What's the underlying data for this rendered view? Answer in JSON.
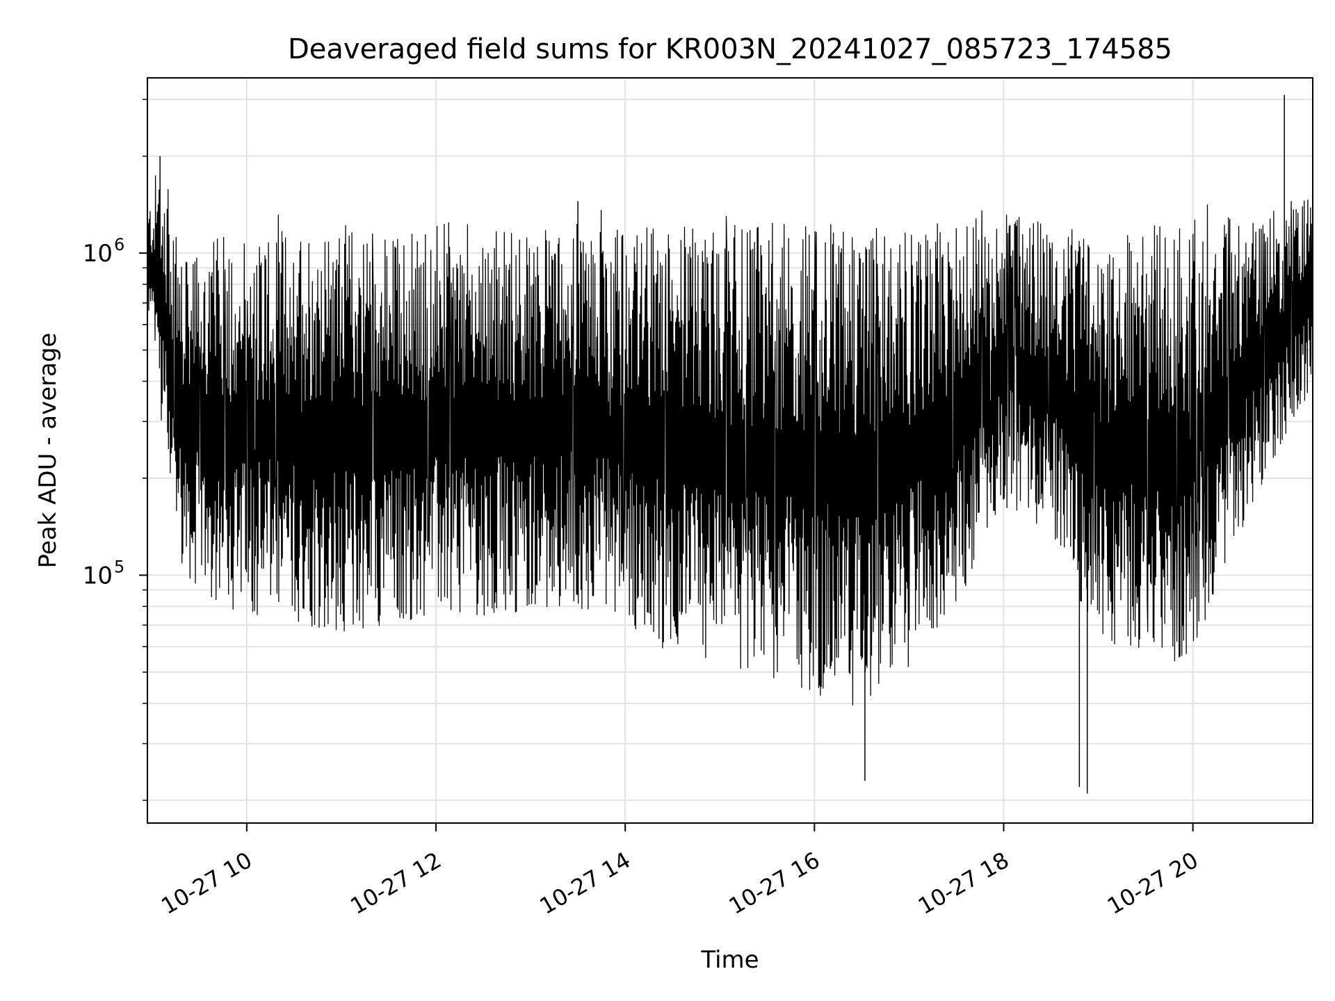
{
  "chart_data": {
    "type": "line",
    "title": "Deaveraged field sums for KR003N_20241027_085723_174585",
    "xlabel": "Time",
    "ylabel": "Peak ADU - average",
    "y_scale": "log",
    "grid": true,
    "line_color": "#000000",
    "x_range": [
      "2024-10-27T08:57",
      "2024-10-27T21:16"
    ],
    "y_range": [
      17000,
      3500000
    ],
    "x_ticks": [
      {
        "t": "2024-10-27T10:00",
        "label": "10-27 10"
      },
      {
        "t": "2024-10-27T12:00",
        "label": "10-27 12"
      },
      {
        "t": "2024-10-27T14:00",
        "label": "10-27 14"
      },
      {
        "t": "2024-10-27T16:00",
        "label": "10-27 16"
      },
      {
        "t": "2024-10-27T18:00",
        "label": "10-27 18"
      },
      {
        "t": "2024-10-27T20:00",
        "label": "10-27 20"
      }
    ],
    "y_major_ticks": [
      {
        "value": 100000,
        "base": "10",
        "exp": "5"
      },
      {
        "value": 1000000,
        "base": "10",
        "exp": "6"
      }
    ],
    "envelope": {
      "time": [
        "2024-10-27T08:57",
        "2024-10-27T09:05",
        "2024-10-27T09:20",
        "2024-10-27T09:40",
        "2024-10-27T10:00",
        "2024-10-27T10:30",
        "2024-10-27T11:00",
        "2024-10-27T11:30",
        "2024-10-27T12:00",
        "2024-10-27T12:30",
        "2024-10-27T13:00",
        "2024-10-27T13:30",
        "2024-10-27T14:00",
        "2024-10-27T14:30",
        "2024-10-27T15:00",
        "2024-10-27T15:30",
        "2024-10-27T16:00",
        "2024-10-27T16:30",
        "2024-10-27T17:00",
        "2024-10-27T17:30",
        "2024-10-27T18:00",
        "2024-10-27T18:30",
        "2024-10-27T19:00",
        "2024-10-27T19:30",
        "2024-10-27T20:00",
        "2024-10-27T20:30",
        "2024-10-27T21:00",
        "2024-10-27T21:16"
      ],
      "upper": [
        1300000,
        1900000,
        850000,
        1000000,
        1050000,
        1100000,
        1080000,
        1000000,
        1100000,
        1080000,
        1050000,
        1100000,
        1050000,
        1080000,
        1050000,
        1100000,
        1080000,
        1050000,
        1000000,
        1150000,
        1200000,
        1150000,
        950000,
        1050000,
        1100000,
        1150000,
        1300000,
        1500000
      ],
      "lower": [
        700000,
        350000,
        110000,
        90000,
        85000,
        80000,
        75000,
        80000,
        85000,
        85000,
        88000,
        90000,
        80000,
        65000,
        60000,
        55000,
        50000,
        45000,
        60000,
        90000,
        180000,
        150000,
        70000,
        65000,
        60000,
        150000,
        300000,
        400000
      ]
    },
    "notable_points": [
      {
        "t": "2024-10-27T09:05",
        "value": 2000000
      },
      {
        "t": "2024-10-27T13:30",
        "value": 1450000
      },
      {
        "t": "2024-10-27T16:32",
        "value": 23000
      },
      {
        "t": "2024-10-27T18:48",
        "value": 22000
      },
      {
        "t": "2024-10-27T18:53",
        "value": 21000
      },
      {
        "t": "2024-10-27T20:58",
        "value": 3100000
      }
    ]
  }
}
